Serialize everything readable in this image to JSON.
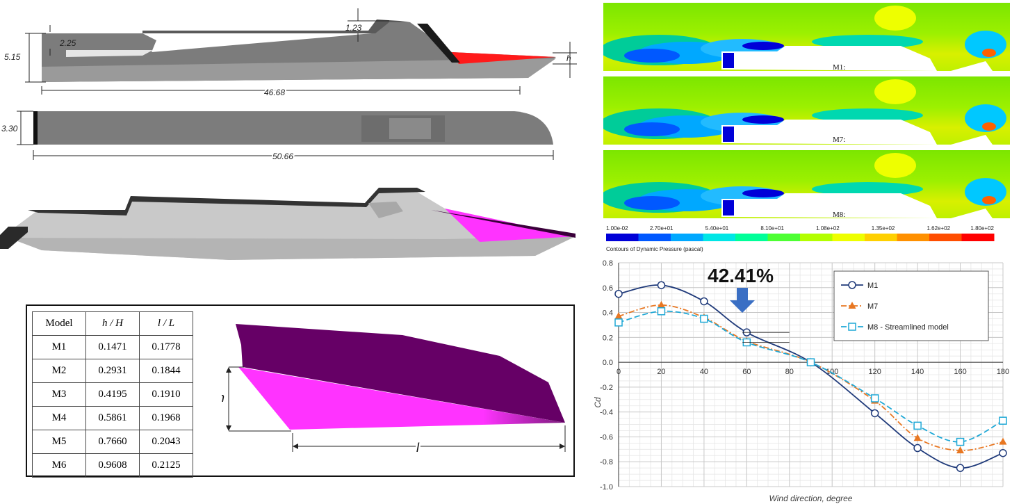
{
  "dimensions": {
    "top_height": "1.23",
    "stern_step": "2.25",
    "overall_height": "5.15",
    "bow_h": "h",
    "side_length": "46.68",
    "beam": "3.30",
    "top_length": "50.66"
  },
  "table": {
    "headers": [
      "Model",
      "h / H",
      "l / L"
    ],
    "rows": [
      [
        "M1",
        "0.1471",
        "0.1778"
      ],
      [
        "M2",
        "0.2931",
        "0.1844"
      ],
      [
        "M3",
        "0.4195",
        "0.1910"
      ],
      [
        "M4",
        "0.5861",
        "0.1968"
      ],
      [
        "M5",
        "0.7660",
        "0.2043"
      ],
      [
        "M6",
        "0.9608",
        "0.2125"
      ]
    ]
  },
  "bow_detail": {
    "h_label": "h",
    "l_label": "l"
  },
  "contours": {
    "panels": [
      "M1:",
      "M7:",
      "M8:"
    ],
    "colorbar_ticks": [
      "1.00e-02",
      "2.70e+01",
      "5.40e+01",
      "8.10e+01",
      "1.08e+02",
      "1.35e+02",
      "1.62e+02",
      "1.80e+02"
    ],
    "colorbar_title": "Contours of Dynamic Pressure (pascal)",
    "colorbar_colors": [
      "#0000d8",
      "#0058ff",
      "#00a8ff",
      "#00e6e6",
      "#00ff99",
      "#4dff33",
      "#b3ff00",
      "#eeff00",
      "#ffd000",
      "#ff9000",
      "#ff4d00",
      "#ff0000"
    ]
  },
  "chart_data": {
    "type": "line",
    "xlabel": "Wind direction, degree",
    "ylabel": "Cd",
    "xlim": [
      0,
      180
    ],
    "ylim": [
      -1.0,
      0.8
    ],
    "xticks": [
      "0",
      "20",
      "40",
      "60",
      "80",
      "100",
      "120",
      "140",
      "160",
      "180"
    ],
    "yticks": [
      "0.8",
      "0.6",
      "0.4",
      "0.2",
      "0.0",
      "-0.2",
      "-0.4",
      "-0.6",
      "-0.8",
      "-1.0"
    ],
    "grid": true,
    "legend_position": "top-right",
    "annotation": "42.41%",
    "series": [
      {
        "name": "M1",
        "color": "#1f3a7a",
        "marker": "circle",
        "x": [
          0,
          20,
          40,
          60,
          90,
          120,
          140,
          160,
          180
        ],
        "y": [
          0.55,
          0.62,
          0.49,
          0.24,
          0.0,
          -0.41,
          -0.69,
          -0.85,
          -0.73
        ]
      },
      {
        "name": "M7",
        "color": "#e87722",
        "marker": "triangle",
        "x": [
          0,
          20,
          40,
          60,
          90,
          120,
          140,
          160,
          180
        ],
        "y": [
          0.37,
          0.46,
          0.36,
          0.17,
          0.0,
          -0.31,
          -0.61,
          -0.71,
          -0.64
        ]
      },
      {
        "name": "M8 - Streamlined model",
        "color": "#1fa8d6",
        "marker": "square",
        "x": [
          0,
          20,
          40,
          60,
          90,
          120,
          140,
          160,
          180
        ],
        "y": [
          0.32,
          0.41,
          0.35,
          0.16,
          0.0,
          -0.29,
          -0.51,
          -0.64,
          -0.47
        ]
      }
    ]
  }
}
